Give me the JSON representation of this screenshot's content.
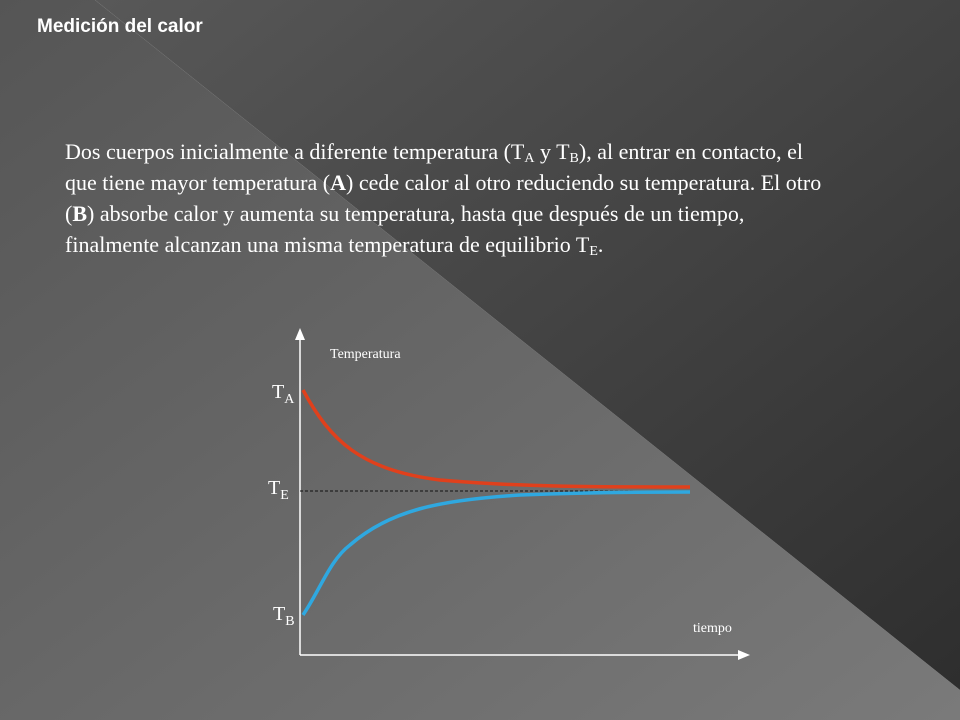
{
  "header": {
    "title": "Medición del calor"
  },
  "paragraph": [
    {
      "text": "Dos cuerpos inicialmente a diferente temperatura (T"
    },
    {
      "text": "A",
      "style": "sub"
    },
    {
      "text": " y T"
    },
    {
      "text": "B",
      "style": "sub"
    },
    {
      "text": "), al entrar en contacto, el que tiene mayor temperatura ("
    },
    {
      "text": "A",
      "style": "bold"
    },
    {
      "text": ") cede calor al otro reduciendo su temperatura. El otro ("
    },
    {
      "text": "B",
      "style": "bold"
    },
    {
      "text": ") absorbe calor y aumenta su temperatura, hasta que después de un tiempo, finalmente alcanzan una misma temperatura de equilibrio T"
    },
    {
      "text": "E",
      "style": "sub"
    },
    {
      "text": "."
    }
  ],
  "diagram": {
    "y_axis_label": "Temperatura",
    "x_axis_label": "tiempo",
    "labels": [
      {
        "main": "T",
        "sub": "A"
      },
      {
        "main": "T",
        "sub": "E"
      },
      {
        "main": "T",
        "sub": "B"
      }
    ]
  }
}
